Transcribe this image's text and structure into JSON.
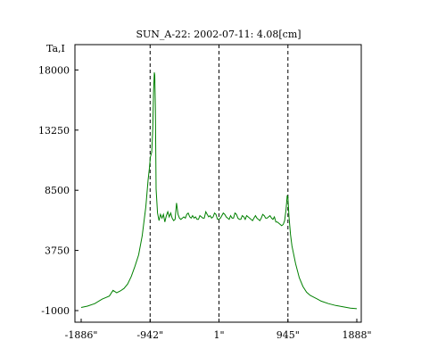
{
  "chart_data": {
    "type": "line",
    "title": "SUN_A-22: 2002-07-11: 4.08[cm]",
    "ylabel": "Ta,I",
    "xlabel": "",
    "xlim": [
      -1886,
      1888
    ],
    "ylim": [
      -1000,
      20000
    ],
    "x_ticks": [
      -1886,
      -942,
      1,
      945,
      1888
    ],
    "x_tick_labels": [
      "-1886\"",
      "-942\"",
      "1\"",
      "945\"",
      "1888\""
    ],
    "y_ticks": [
      -1000,
      3750,
      8500,
      13250,
      18000
    ],
    "y_tick_labels": [
      "-1000",
      "3750",
      "8500",
      "13250",
      "18000"
    ],
    "grid": false,
    "reference_lines": [
      -942,
      1,
      945
    ],
    "line_color": "#008000",
    "series": [
      {
        "x": [
          -1886,
          -1800,
          -1700,
          -1600,
          -1500,
          -1450,
          -1400,
          -1350,
          -1300,
          -1250,
          -1200,
          -1150,
          -1100,
          -1050,
          -1000,
          -970,
          -950,
          -940,
          -920,
          -905,
          -895,
          -885,
          -878,
          -870,
          -860,
          -840,
          -820,
          -800,
          -780,
          -760,
          -740,
          -720,
          -700,
          -680,
          -660,
          -640,
          -620,
          -600,
          -580,
          -560,
          -540,
          -520,
          -500,
          -480,
          -460,
          -440,
          -420,
          -400,
          -380,
          -360,
          -340,
          -320,
          -300,
          -280,
          -260,
          -240,
          -220,
          -200,
          -180,
          -160,
          -140,
          -120,
          -100,
          -80,
          -60,
          -40,
          -20,
          0,
          20,
          40,
          60,
          80,
          100,
          120,
          140,
          160,
          180,
          200,
          220,
          240,
          260,
          280,
          300,
          320,
          340,
          360,
          380,
          400,
          420,
          440,
          460,
          480,
          500,
          520,
          540,
          560,
          580,
          600,
          620,
          640,
          660,
          680,
          700,
          720,
          740,
          760,
          780,
          800,
          820,
          840,
          860,
          880,
          900,
          920,
          935,
          945,
          960,
          980,
          1000,
          1050,
          1100,
          1150,
          1200,
          1250,
          1300,
          1350,
          1400,
          1500,
          1600,
          1700,
          1800,
          1888
        ],
        "y": [
          -750,
          -650,
          -450,
          -100,
          150,
          600,
          400,
          550,
          750,
          1100,
          1700,
          2500,
          3400,
          4900,
          7200,
          9300,
          10300,
          11100,
          11500,
          13400,
          16200,
          17800,
          17600,
          15000,
          8600,
          6700,
          6100,
          6600,
          6300,
          6600,
          6000,
          6500,
          6800,
          6400,
          6700,
          6300,
          6100,
          6200,
          7500,
          6600,
          6300,
          6200,
          6300,
          6400,
          6300,
          6600,
          6700,
          6400,
          6300,
          6500,
          6300,
          6400,
          6200,
          6200,
          6500,
          6400,
          6300,
          6300,
          6800,
          6600,
          6400,
          6500,
          6300,
          6400,
          6700,
          6600,
          6200,
          6200,
          6300,
          6500,
          6700,
          6600,
          6400,
          6300,
          6200,
          6500,
          6300,
          6300,
          6700,
          6600,
          6300,
          6200,
          6200,
          6500,
          6400,
          6200,
          6500,
          6400,
          6300,
          6200,
          6100,
          6300,
          6500,
          6300,
          6200,
          6100,
          6300,
          6600,
          6500,
          6300,
          6300,
          6400,
          6500,
          6300,
          6200,
          6400,
          6000,
          6000,
          5900,
          5800,
          5700,
          5800,
          6100,
          7000,
          8100,
          7900,
          6400,
          5000,
          4100,
          2700,
          1600,
          900,
          450,
          200,
          50,
          -100,
          -250,
          -450,
          -600,
          -700,
          -800,
          -850
        ]
      }
    ]
  }
}
